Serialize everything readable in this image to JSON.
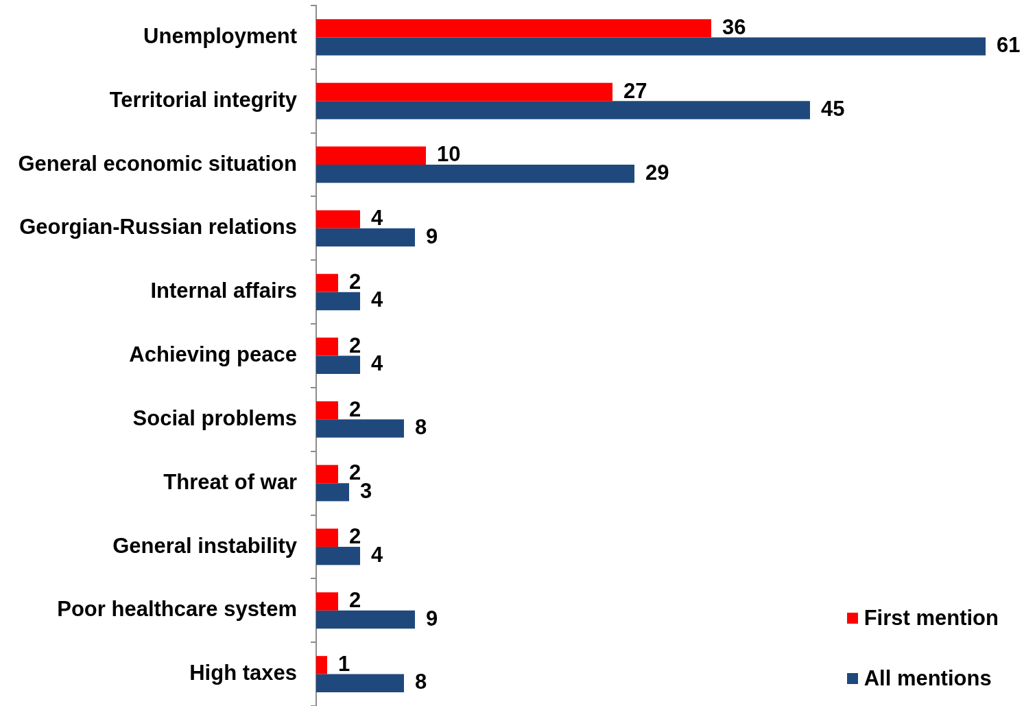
{
  "chart_data": {
    "type": "bar",
    "orientation": "horizontal",
    "categories": [
      "Unemployment",
      "Territorial integrity",
      "General economic situation",
      "Georgian-Russian relations",
      "Internal affairs",
      "Achieving peace",
      "Social problems",
      "Threat of war",
      "General instability",
      "Poor healthcare system",
      "High taxes"
    ],
    "series": [
      {
        "name": "First mention",
        "color": "#ff0000",
        "values": [
          36,
          27,
          10,
          4,
          2,
          2,
          2,
          2,
          2,
          2,
          1
        ]
      },
      {
        "name": "All mentions",
        "color": "#1f497d",
        "values": [
          61,
          45,
          29,
          9,
          4,
          4,
          8,
          3,
          4,
          9,
          8
        ]
      }
    ],
    "data_labels": true,
    "legend": "bottom right",
    "tick_labels": "y"
  }
}
